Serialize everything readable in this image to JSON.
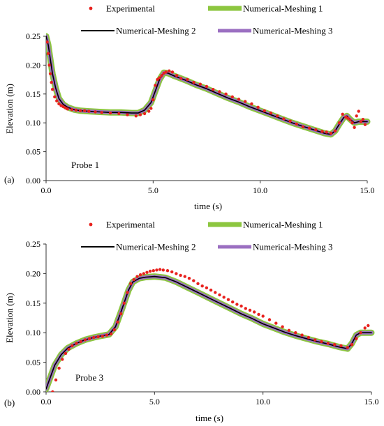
{
  "chart_data": [
    {
      "type": "line",
      "panel_label": "(a)",
      "annotation": "Probe 1",
      "xlabel": "time (s)",
      "ylabel": "Elevation (m)",
      "xlim": [
        0,
        15
      ],
      "ylim": [
        0,
        0.25
      ],
      "x_ticks": [
        "0.0",
        "5.0",
        "10.0",
        "15.0"
      ],
      "y_ticks": [
        "0.00",
        "0.05",
        "0.10",
        "0.15",
        "0.20",
        "0.25"
      ],
      "grid": false,
      "legend": [
        "Experimental",
        "Numerical-Meshing 1",
        "Numerical-Meshing 2",
        "Numerical-Meshing 3"
      ],
      "series": [
        {
          "name": "Numerical-Meshing 1",
          "style": "line",
          "color": "#8cc63f",
          "x": [
            0.0,
            0.1,
            0.2,
            0.3,
            0.45,
            0.6,
            0.8,
            1.0,
            1.3,
            1.6,
            2.0,
            2.5,
            3.0,
            3.5,
            4.0,
            4.3,
            4.6,
            4.9,
            5.1,
            5.3,
            5.5,
            5.7,
            6.0,
            6.5,
            7.0,
            7.5,
            8.0,
            8.5,
            9.0,
            9.5,
            10.0,
            10.5,
            11.0,
            11.5,
            12.0,
            12.5,
            13.0,
            13.3,
            13.5,
            13.7,
            13.9,
            14.05,
            14.2,
            14.4,
            14.6,
            15.0
          ],
          "values": [
            0.25,
            0.235,
            0.21,
            0.185,
            0.16,
            0.142,
            0.132,
            0.127,
            0.123,
            0.121,
            0.12,
            0.119,
            0.118,
            0.118,
            0.117,
            0.117,
            0.122,
            0.135,
            0.155,
            0.175,
            0.187,
            0.186,
            0.181,
            0.174,
            0.166,
            0.159,
            0.151,
            0.143,
            0.136,
            0.128,
            0.121,
            0.114,
            0.107,
            0.1,
            0.094,
            0.088,
            0.082,
            0.08,
            0.086,
            0.098,
            0.109,
            0.112,
            0.106,
            0.1,
            0.102,
            0.102
          ]
        },
        {
          "name": "Numerical-Meshing 2",
          "style": "line",
          "color": "#000000",
          "x": [
            0.0,
            0.1,
            0.2,
            0.3,
            0.45,
            0.6,
            0.8,
            1.0,
            1.3,
            1.6,
            2.0,
            2.5,
            3.0,
            3.5,
            4.0,
            4.3,
            4.6,
            4.9,
            5.1,
            5.3,
            5.5,
            5.7,
            6.0,
            6.5,
            7.0,
            7.5,
            8.0,
            8.5,
            9.0,
            9.5,
            10.0,
            10.5,
            11.0,
            11.5,
            12.0,
            12.5,
            13.0,
            13.3,
            13.5,
            13.7,
            13.9,
            14.05,
            14.2,
            14.4,
            14.6,
            15.0
          ],
          "values": [
            0.25,
            0.235,
            0.21,
            0.185,
            0.16,
            0.142,
            0.132,
            0.127,
            0.123,
            0.121,
            0.12,
            0.119,
            0.118,
            0.118,
            0.117,
            0.117,
            0.122,
            0.135,
            0.155,
            0.175,
            0.187,
            0.186,
            0.181,
            0.174,
            0.166,
            0.159,
            0.151,
            0.143,
            0.136,
            0.128,
            0.121,
            0.114,
            0.107,
            0.1,
            0.094,
            0.088,
            0.082,
            0.08,
            0.086,
            0.098,
            0.109,
            0.112,
            0.106,
            0.1,
            0.102,
            0.102
          ]
        },
        {
          "name": "Numerical-Meshing 3",
          "style": "line",
          "color": "#9b6fc1",
          "x": [
            0.0,
            0.1,
            0.2,
            0.3,
            0.45,
            0.6,
            0.8,
            1.0,
            1.3,
            1.6,
            2.0,
            2.5,
            3.0,
            3.5,
            4.0,
            4.3,
            4.6,
            4.9,
            5.1,
            5.3,
            5.5,
            5.7,
            6.0,
            6.5,
            7.0,
            7.5,
            8.0,
            8.5,
            9.0,
            9.5,
            10.0,
            10.5,
            11.0,
            11.5,
            12.0,
            12.5,
            13.0,
            13.3,
            13.5,
            13.7,
            13.9,
            14.05,
            14.2,
            14.4,
            14.6,
            15.0
          ],
          "values": [
            0.25,
            0.235,
            0.21,
            0.185,
            0.16,
            0.142,
            0.132,
            0.127,
            0.123,
            0.121,
            0.12,
            0.119,
            0.118,
            0.118,
            0.117,
            0.117,
            0.122,
            0.135,
            0.155,
            0.175,
            0.187,
            0.186,
            0.181,
            0.174,
            0.166,
            0.159,
            0.151,
            0.143,
            0.136,
            0.128,
            0.121,
            0.114,
            0.107,
            0.1,
            0.094,
            0.088,
            0.082,
            0.08,
            0.086,
            0.098,
            0.109,
            0.112,
            0.106,
            0.1,
            0.102,
            0.102
          ]
        },
        {
          "name": "Experimental",
          "style": "markers",
          "color": "#e8211d",
          "x": [
            0.05,
            0.1,
            0.15,
            0.2,
            0.25,
            0.3,
            0.4,
            0.5,
            0.6,
            0.7,
            0.8,
            0.9,
            1.0,
            1.2,
            1.4,
            1.6,
            1.8,
            2.0,
            2.3,
            2.6,
            3.0,
            3.4,
            3.8,
            4.2,
            4.4,
            4.6,
            4.8,
            4.9,
            5.0,
            5.1,
            5.2,
            5.3,
            5.4,
            5.5,
            5.6,
            5.75,
            5.9,
            6.1,
            6.3,
            6.6,
            6.9,
            7.2,
            7.5,
            7.8,
            8.1,
            8.4,
            8.7,
            9.0,
            9.3,
            9.6,
            9.9,
            10.2,
            10.5,
            10.8,
            11.1,
            11.4,
            11.7,
            12.0,
            12.3,
            12.6,
            12.9,
            13.1,
            13.3,
            13.5,
            13.7,
            13.85,
            14.0,
            14.1,
            14.2,
            14.3,
            14.4,
            14.5,
            14.6,
            14.7,
            14.8,
            14.9
          ],
          "values": [
            0.24,
            0.22,
            0.2,
            0.185,
            0.17,
            0.158,
            0.145,
            0.138,
            0.133,
            0.13,
            0.128,
            0.126,
            0.124,
            0.123,
            0.122,
            0.121,
            0.121,
            0.12,
            0.119,
            0.118,
            0.117,
            0.116,
            0.114,
            0.112,
            0.114,
            0.116,
            0.12,
            0.125,
            0.14,
            0.165,
            0.175,
            0.178,
            0.182,
            0.186,
            0.188,
            0.19,
            0.188,
            0.182,
            0.177,
            0.175,
            0.17,
            0.167,
            0.163,
            0.158,
            0.154,
            0.15,
            0.145,
            0.141,
            0.137,
            0.133,
            0.127,
            0.121,
            0.117,
            0.112,
            0.107,
            0.103,
            0.098,
            0.093,
            0.091,
            0.088,
            0.085,
            0.084,
            0.082,
            0.086,
            0.1,
            0.115,
            0.11,
            0.108,
            0.105,
            0.1,
            0.092,
            0.112,
            0.12,
            0.102,
            0.106,
            0.097
          ]
        }
      ]
    },
    {
      "type": "line",
      "panel_label": "(b)",
      "annotation": "Probe 3",
      "xlabel": "time (s)",
      "ylabel": "Elevation (m)",
      "xlim": [
        0,
        15
      ],
      "ylim": [
        0,
        0.25
      ],
      "x_ticks": [
        "0.0",
        "5.0",
        "10.0",
        "15.0"
      ],
      "y_ticks": [
        "0.00",
        "0.05",
        "0.10",
        "0.15",
        "0.20",
        "0.25"
      ],
      "grid": false,
      "legend": [
        "Experimental",
        "Numerical-Meshing 1",
        "Numerical-Meshing 2",
        "Numerical-Meshing 3"
      ],
      "series": [
        {
          "name": "Numerical-Meshing 1",
          "style": "line",
          "color": "#8cc63f",
          "x": [
            0.0,
            0.2,
            0.4,
            0.7,
            1.0,
            1.4,
            1.8,
            2.2,
            2.6,
            2.9,
            3.2,
            3.5,
            3.8,
            4.0,
            4.3,
            4.6,
            5.0,
            5.5,
            6.0,
            6.5,
            7.0,
            7.5,
            8.0,
            8.5,
            9.0,
            9.5,
            10.0,
            10.5,
            11.0,
            11.5,
            12.0,
            12.5,
            13.0,
            13.5,
            13.9,
            14.1,
            14.3,
            14.5,
            15.0
          ],
          "values": [
            0.005,
            0.025,
            0.045,
            0.063,
            0.074,
            0.082,
            0.088,
            0.092,
            0.095,
            0.097,
            0.11,
            0.14,
            0.172,
            0.186,
            0.192,
            0.194,
            0.195,
            0.193,
            0.186,
            0.177,
            0.168,
            0.159,
            0.15,
            0.141,
            0.132,
            0.124,
            0.115,
            0.108,
            0.101,
            0.095,
            0.09,
            0.085,
            0.081,
            0.076,
            0.073,
            0.082,
            0.096,
            0.1,
            0.1
          ]
        },
        {
          "name": "Numerical-Meshing 2",
          "style": "line",
          "color": "#000000",
          "x": [
            0.0,
            0.2,
            0.4,
            0.7,
            1.0,
            1.4,
            1.8,
            2.2,
            2.6,
            2.9,
            3.2,
            3.5,
            3.8,
            4.0,
            4.3,
            4.6,
            5.0,
            5.5,
            6.0,
            6.5,
            7.0,
            7.5,
            8.0,
            8.5,
            9.0,
            9.5,
            10.0,
            10.5,
            11.0,
            11.5,
            12.0,
            12.5,
            13.0,
            13.5,
            13.9,
            14.1,
            14.3,
            14.5,
            15.0
          ],
          "values": [
            0.005,
            0.025,
            0.045,
            0.063,
            0.074,
            0.082,
            0.088,
            0.092,
            0.095,
            0.097,
            0.11,
            0.14,
            0.172,
            0.186,
            0.192,
            0.194,
            0.195,
            0.193,
            0.186,
            0.177,
            0.168,
            0.159,
            0.15,
            0.141,
            0.132,
            0.124,
            0.115,
            0.108,
            0.101,
            0.095,
            0.09,
            0.085,
            0.081,
            0.076,
            0.073,
            0.082,
            0.096,
            0.1,
            0.1
          ]
        },
        {
          "name": "Numerical-Meshing 3",
          "style": "line",
          "color": "#9b6fc1",
          "x": [
            0.0,
            0.2,
            0.4,
            0.7,
            1.0,
            1.4,
            1.8,
            2.2,
            2.6,
            2.9,
            3.2,
            3.5,
            3.8,
            4.0,
            4.3,
            4.6,
            5.0,
            5.5,
            6.0,
            6.5,
            7.0,
            7.5,
            8.0,
            8.5,
            9.0,
            9.5,
            10.0,
            10.5,
            11.0,
            11.5,
            12.0,
            12.5,
            13.0,
            13.5,
            13.9,
            14.1,
            14.3,
            14.5,
            15.0
          ],
          "values": [
            0.005,
            0.025,
            0.045,
            0.063,
            0.074,
            0.082,
            0.088,
            0.092,
            0.095,
            0.097,
            0.11,
            0.14,
            0.172,
            0.186,
            0.192,
            0.194,
            0.195,
            0.193,
            0.186,
            0.177,
            0.168,
            0.159,
            0.15,
            0.141,
            0.132,
            0.124,
            0.115,
            0.108,
            0.101,
            0.095,
            0.09,
            0.085,
            0.081,
            0.076,
            0.073,
            0.082,
            0.096,
            0.1,
            0.1
          ]
        },
        {
          "name": "Experimental",
          "style": "markers",
          "color": "#e8211d",
          "x": [
            0.3,
            0.45,
            0.6,
            0.75,
            0.9,
            1.05,
            1.2,
            1.4,
            1.6,
            1.8,
            2.0,
            2.2,
            2.4,
            2.6,
            2.8,
            3.0,
            3.15,
            3.3,
            3.45,
            3.6,
            3.75,
            3.9,
            4.05,
            4.2,
            4.35,
            4.5,
            4.65,
            4.8,
            4.95,
            5.1,
            5.25,
            5.4,
            5.6,
            5.8,
            6.0,
            6.2,
            6.4,
            6.6,
            6.8,
            7.0,
            7.2,
            7.4,
            7.6,
            7.8,
            8.0,
            8.2,
            8.4,
            8.6,
            8.8,
            9.0,
            9.2,
            9.4,
            9.6,
            9.8,
            10.0,
            10.3,
            10.6,
            10.9,
            11.2,
            11.5,
            11.8,
            12.1,
            12.4,
            12.7,
            13.0,
            13.3,
            13.6,
            13.9,
            14.1,
            14.3,
            14.5,
            14.7,
            14.85
          ],
          "values": [
            0.0,
            0.02,
            0.04,
            0.055,
            0.065,
            0.072,
            0.078,
            0.082,
            0.085,
            0.088,
            0.09,
            0.092,
            0.093,
            0.094,
            0.096,
            0.098,
            0.105,
            0.118,
            0.132,
            0.15,
            0.168,
            0.183,
            0.19,
            0.195,
            0.198,
            0.2,
            0.202,
            0.204,
            0.205,
            0.206,
            0.207,
            0.206,
            0.205,
            0.203,
            0.2,
            0.197,
            0.195,
            0.192,
            0.188,
            0.183,
            0.179,
            0.176,
            0.172,
            0.168,
            0.164,
            0.16,
            0.156,
            0.152,
            0.148,
            0.145,
            0.141,
            0.138,
            0.135,
            0.131,
            0.128,
            0.122,
            0.116,
            0.11,
            0.104,
            0.1,
            0.096,
            0.092,
            0.088,
            0.085,
            0.082,
            0.08,
            0.078,
            0.075,
            0.08,
            0.09,
            0.1,
            0.108,
            0.112
          ]
        }
      ]
    }
  ]
}
